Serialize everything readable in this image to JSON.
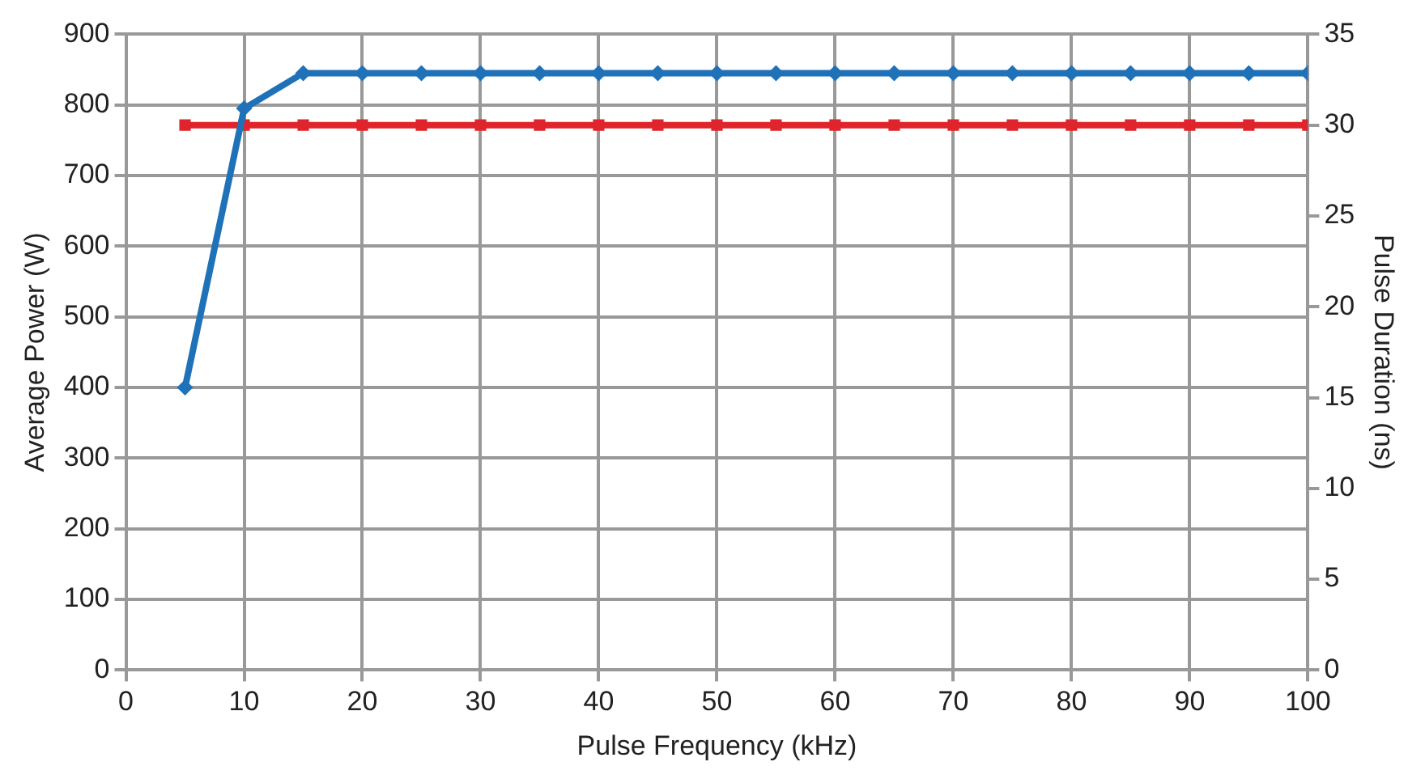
{
  "chart_data": {
    "type": "line",
    "xlabel": "Pulse Frequency (kHz)",
    "ylabel": "Average Power (W)",
    "y2label": "Pulse Duration (ns)",
    "x": [
      5,
      10,
      15,
      20,
      25,
      30,
      35,
      40,
      45,
      50,
      55,
      60,
      65,
      70,
      75,
      80,
      85,
      90,
      95,
      100
    ],
    "series": [
      {
        "color": "#1f72b8",
        "marker": "diamond",
        "values": [
          400,
          795,
          845,
          845,
          845,
          845,
          845,
          845,
          845,
          845,
          845,
          845,
          845,
          845,
          845,
          845,
          845,
          845,
          845,
          845
        ]
      },
      {
        "color": "#e0242b",
        "marker": "square",
        "axis": "y2",
        "values": [
          30,
          30,
          30,
          30,
          30,
          30,
          30,
          30,
          30,
          30,
          30,
          30,
          30,
          30,
          30,
          30,
          30,
          30,
          30,
          30
        ]
      }
    ],
    "xlim": [
      0,
      100
    ],
    "xticks": [
      0,
      10,
      20,
      30,
      40,
      50,
      60,
      70,
      80,
      90,
      100
    ],
    "ylim": [
      0,
      900
    ],
    "yticks": [
      0,
      100,
      200,
      300,
      400,
      500,
      600,
      700,
      800,
      900
    ],
    "y2lim": [
      0,
      35
    ],
    "y2ticks": [
      0,
      5,
      10,
      15,
      20,
      25,
      30,
      35
    ],
    "grid": true,
    "legend": false,
    "line_style": "solid"
  }
}
